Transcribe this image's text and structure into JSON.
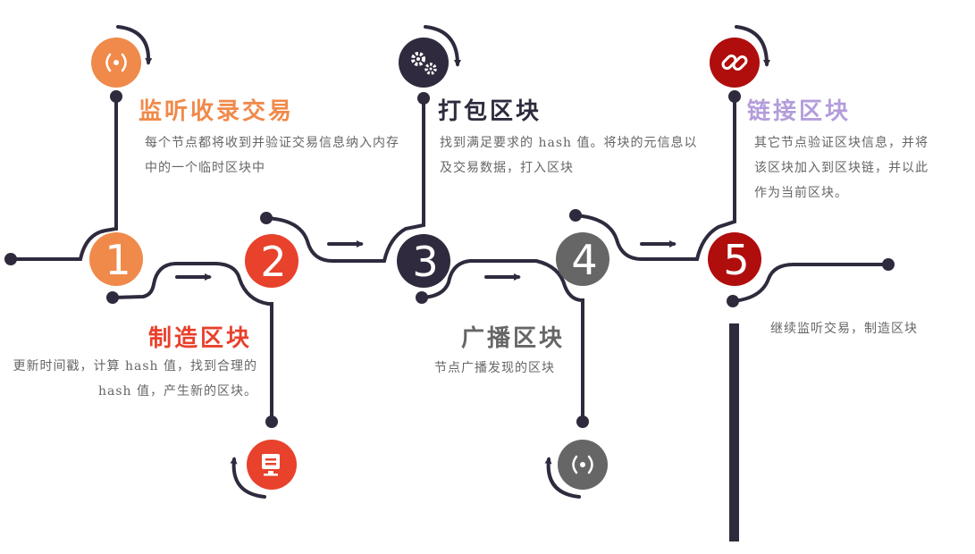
{
  "steps": [
    {
      "number": "1",
      "title": "监听收录交易",
      "desc": "每个节点都将收到并验证交易信息纳入内存中的一个临时区块中",
      "color": "#f08a4b",
      "icon": "broadcast-icon"
    },
    {
      "number": "2",
      "title": "制造区块",
      "desc": "更新时间戳，计算 hash 值，找到合理的 hash 值，产生新的区块。",
      "color": "#e8412c",
      "icon": "monitor-icon"
    },
    {
      "number": "3",
      "title": "打包区块",
      "desc": "找到满足要求的 hash 值。将块的元信息以及交易数据，打入区块",
      "color": "#2f2a3d",
      "icon": "gears-icon"
    },
    {
      "number": "4",
      "title": "广播区块",
      "desc": "节点广播发现的区块",
      "color": "#666666",
      "icon": "broadcast-icon"
    },
    {
      "number": "5",
      "title": "链接区块",
      "desc": "其它节点验证区块信息，并将该区块加入到区块链，并以此作为当前区块。",
      "color": "#b00d0d",
      "icon": "link-icon"
    }
  ],
  "final_note": "继续监听交易，制造区块",
  "colors": {
    "line": "#2f2a3d",
    "step5_title": "#b39ddb"
  }
}
